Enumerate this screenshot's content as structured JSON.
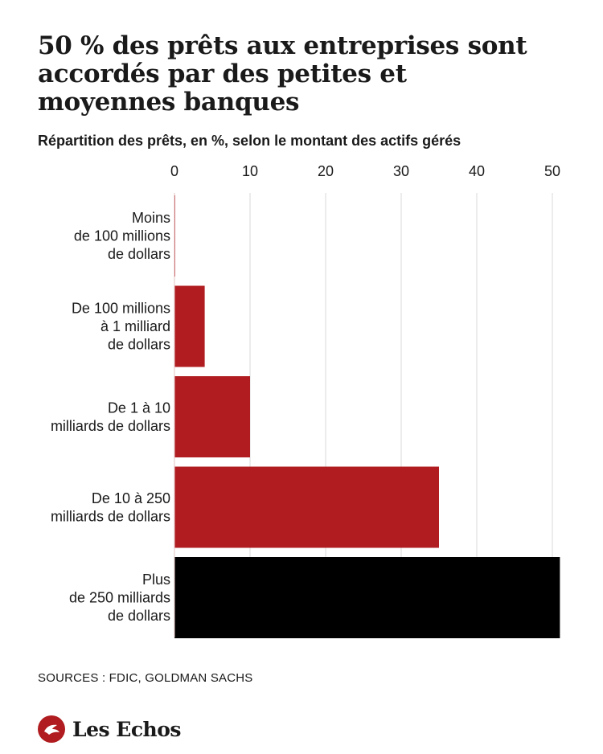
{
  "header": {
    "title": "50 % des prêts aux entreprises sont accordés par des petites et moyennes banques",
    "subtitle": "Répartition des prêts, en %, selon le montant des actifs gérés"
  },
  "footer": {
    "source": "SOURCES : FDIC, GOLDMAN SACHS",
    "brand": "Les Echos"
  },
  "colors": {
    "red": "#b01c1f",
    "black": "#000000",
    "grid": "#d9d9d9"
  },
  "chart_data": {
    "type": "bar",
    "orientation": "horizontal",
    "title": "50 % des prêts aux entreprises sont accordés par des petites et moyennes banques",
    "subtitle": "Répartition des prêts, en %, selon le montant des actifs gérés",
    "xlabel": "",
    "ylabel": "",
    "xlim": [
      0,
      51
    ],
    "ticks": [
      0,
      10,
      20,
      30,
      40,
      50
    ],
    "tick_position": "top",
    "grid": true,
    "categories": [
      [
        "Moins",
        "de 100 millions",
        "de dollars"
      ],
      [
        "De 100 millions",
        "à 1 milliard",
        "de dollars"
      ],
      [
        "De 1 à 10",
        "milliards de dollars"
      ],
      [
        "De 10 à 250",
        "milliards de dollars"
      ],
      [
        "Plus",
        "de 250 milliards",
        "de dollars"
      ]
    ],
    "values": [
      0.1,
      4,
      10,
      35,
      51
    ],
    "bar_colors": [
      "#b01c1f",
      "#b01c1f",
      "#b01c1f",
      "#b01c1f",
      "#000000"
    ]
  }
}
